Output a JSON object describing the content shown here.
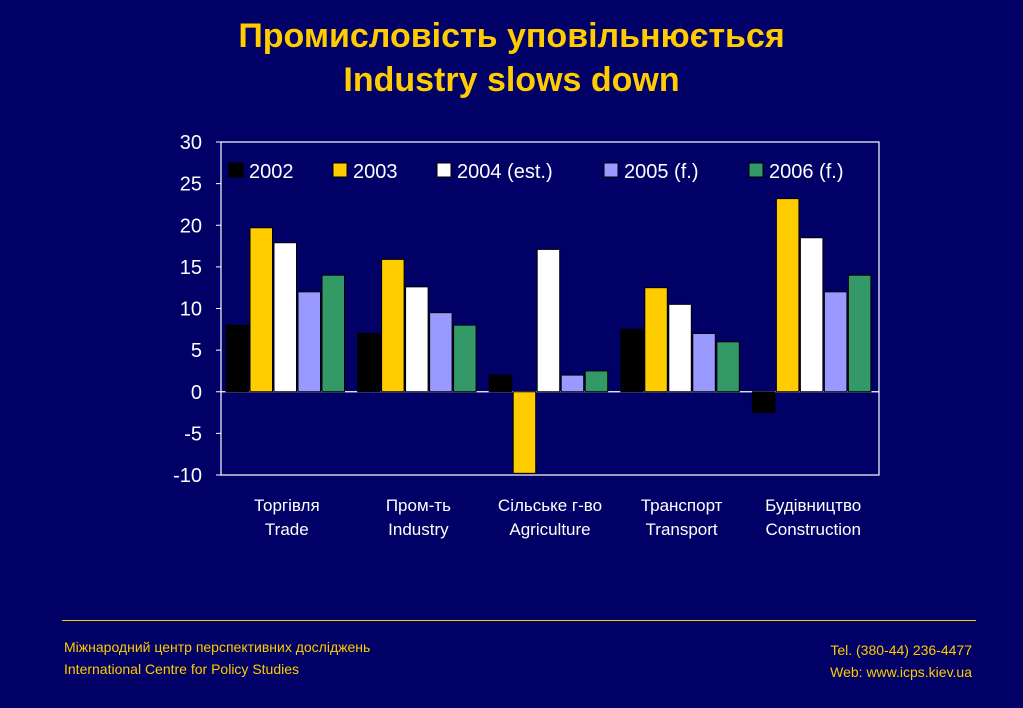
{
  "slide": {
    "title_line1": "Промисловість уповільнюється",
    "title_line2": "Industry slows down"
  },
  "footer": {
    "org_ua": "Міжнародний центр перспективних досліджень",
    "org_en": "International Centre for Policy Studies",
    "tel": "Tel. (380-44) 236-4477",
    "web": "Web: www.icps.kiev.ua"
  },
  "colors": {
    "background": "#000066",
    "title": "#ffcc00",
    "text": "#ffffff"
  },
  "chart_data": {
    "type": "bar",
    "categories": [
      [
        "Торгівля",
        "Trade"
      ],
      [
        "Пром-ть",
        "Industry"
      ],
      [
        "Сільське г-во",
        "Agriculture"
      ],
      [
        "Транспорт",
        "Transport"
      ],
      [
        "Будівництво",
        "Construction"
      ]
    ],
    "series": [
      {
        "name": "2002",
        "color": "#000000",
        "values": [
          8,
          7,
          2,
          7.5,
          -2.5
        ]
      },
      {
        "name": "2003",
        "color": "#ffcc00",
        "values": [
          19.7,
          15.9,
          -9.8,
          12.5,
          23.2
        ]
      },
      {
        "name": "2004 (est.)",
        "color": "#ffffff",
        "values": [
          17.9,
          12.6,
          17.1,
          10.5,
          18.5
        ]
      },
      {
        "name": "2005 (f.)",
        "color": "#9999ff",
        "values": [
          12,
          9.5,
          2,
          7,
          12
        ]
      },
      {
        "name": "2006 (f.)",
        "color": "#339966",
        "values": [
          14,
          8,
          2.5,
          6,
          14
        ]
      }
    ],
    "ylim": [
      -10,
      30
    ],
    "yticks": [
      "30",
      "25",
      "20",
      "15",
      "10",
      "5",
      "0",
      "-5",
      "-10"
    ],
    "ytick_values": [
      30,
      25,
      20,
      15,
      10,
      5,
      0,
      -5,
      -10
    ],
    "grid": false,
    "legend_position": "top"
  }
}
